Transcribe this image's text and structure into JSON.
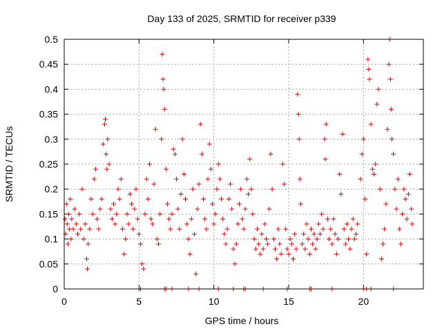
{
  "chart_data": {
    "type": "scatter",
    "title": "Day 133 of 2025, SRMTID for receiver p339",
    "xlabel": "GPS time / hours",
    "ylabel": "SRMTID / TECUs",
    "xlim": [
      0,
      24
    ],
    "ylim": [
      0,
      0.5
    ],
    "x_ticks": [
      0,
      5,
      10,
      15,
      20
    ],
    "y_ticks": [
      0,
      0.05,
      0.1,
      0.15,
      0.2,
      0.25,
      0.3,
      0.35,
      0.4,
      0.45,
      0.5
    ],
    "x_tick_labels": [
      "0",
      "5",
      "10",
      "15",
      "20"
    ],
    "y_tick_labels": [
      "0",
      "0.05",
      "0.1",
      "0.15",
      "0.2",
      "0.25",
      "0.3",
      "0.35",
      "0.4",
      "0.45",
      "0.5"
    ],
    "grid": true,
    "marker": "+",
    "color": "#e00000",
    "series": [
      {
        "name": "SRMTID",
        "points": [
          [
            0.05,
            0.14
          ],
          [
            0.1,
            0.11
          ],
          [
            0.15,
            0.17
          ],
          [
            0.2,
            0.13
          ],
          [
            0.25,
            0.09
          ],
          [
            0.3,
            0.15
          ],
          [
            0.35,
            0.12
          ],
          [
            0.4,
            0.18
          ],
          [
            0.45,
            0.1
          ],
          [
            0.5,
            0.14
          ],
          [
            0.6,
            0.12
          ],
          [
            0.7,
            0.16
          ],
          [
            0.8,
            0.13
          ],
          [
            0.9,
            0.11
          ],
          [
            1.0,
            0.15
          ],
          [
            1.1,
            0.12
          ],
          [
            1.2,
            0.2
          ],
          [
            1.3,
            0.1
          ],
          [
            1.4,
            0.13
          ],
          [
            1.5,
            0.06
          ],
          [
            1.55,
            0.04
          ],
          [
            1.6,
            0.09
          ],
          [
            1.7,
            0.12
          ],
          [
            1.8,
            0.18
          ],
          [
            1.9,
            0.15
          ],
          [
            2.0,
            0.22
          ],
          [
            2.1,
            0.24
          ],
          [
            2.2,
            0.14
          ],
          [
            2.3,
            0.12
          ],
          [
            2.4,
            0.16
          ],
          [
            2.5,
            0.18
          ],
          [
            2.6,
            0.29
          ],
          [
            2.7,
            0.33
          ],
          [
            2.75,
            0.34
          ],
          [
            2.8,
            0.27
          ],
          [
            2.85,
            0.24
          ],
          [
            2.9,
            0.3
          ],
          [
            3.0,
            0.25
          ],
          [
            3.1,
            0.16
          ],
          [
            3.2,
            0.14
          ],
          [
            3.3,
            0.17
          ],
          [
            3.4,
            0.13
          ],
          [
            3.5,
            0.15
          ],
          [
            3.6,
            0.2
          ],
          [
            3.7,
            0.18
          ],
          [
            3.8,
            0.22
          ],
          [
            3.9,
            0.12
          ],
          [
            4.0,
            0.07
          ],
          [
            4.1,
            0.1
          ],
          [
            4.2,
            0.15
          ],
          [
            4.3,
            0.13
          ],
          [
            4.4,
            0.19
          ],
          [
            4.5,
            0.17
          ],
          [
            4.6,
            0.12
          ],
          [
            4.7,
            0.16
          ],
          [
            4.8,
            0.2
          ],
          [
            4.9,
            0.14
          ],
          [
            5.0,
            0.11
          ],
          [
            5.1,
            0.09
          ],
          [
            5.2,
            0.05
          ],
          [
            5.3,
            0.04
          ],
          [
            5.4,
            0.15
          ],
          [
            5.5,
            0.22
          ],
          [
            5.6,
            0.18
          ],
          [
            5.7,
            0.25
          ],
          [
            5.8,
            0.14
          ],
          [
            5.9,
            0.13
          ],
          [
            6.0,
            0.21
          ],
          [
            6.1,
            0.32
          ],
          [
            6.2,
            0.1
          ],
          [
            6.3,
            0.09
          ],
          [
            6.4,
            0.15
          ],
          [
            6.5,
            0.3
          ],
          [
            6.55,
            0.47
          ],
          [
            6.6,
            0.42
          ],
          [
            6.65,
            0.4
          ],
          [
            6.7,
            0.36
          ],
          [
            6.8,
            0.24
          ],
          [
            6.9,
            0.17
          ],
          [
            7.0,
            0.14
          ],
          [
            7.1,
            0.12
          ],
          [
            7.2,
            0.15
          ],
          [
            7.3,
            0.28
          ],
          [
            7.4,
            0.27
          ],
          [
            7.5,
            0.22
          ],
          [
            7.6,
            0.16
          ],
          [
            7.7,
            0.12
          ],
          [
            7.8,
            0.19
          ],
          [
            7.9,
            0.3
          ],
          [
            8.0,
            0.23
          ],
          [
            8.1,
            0.18
          ],
          [
            8.2,
            0.13
          ],
          [
            8.3,
            0.1
          ],
          [
            8.4,
            0.07
          ],
          [
            8.5,
            0.14
          ],
          [
            8.6,
            0.2
          ],
          [
            8.7,
            0.11
          ],
          [
            8.8,
            0.03
          ],
          [
            8.9,
            0.16
          ],
          [
            9.0,
            0.21
          ],
          [
            9.1,
            0.33
          ],
          [
            9.2,
            0.27
          ],
          [
            9.3,
            0.18
          ],
          [
            9.4,
            0.14
          ],
          [
            9.5,
            0.12
          ],
          [
            9.6,
            0.22
          ],
          [
            9.7,
            0.29
          ],
          [
            9.8,
            0.24
          ],
          [
            9.9,
            0.17
          ],
          [
            10.0,
            0.13
          ],
          [
            10.1,
            0.15
          ],
          [
            10.2,
            0.2
          ],
          [
            10.3,
            0.25
          ],
          [
            10.4,
            0.22
          ],
          [
            10.5,
            0.18
          ],
          [
            10.6,
            0.14
          ],
          [
            10.7,
            0.11
          ],
          [
            10.8,
            0.09
          ],
          [
            10.9,
            0.12
          ],
          [
            11.0,
            0.18
          ],
          [
            11.1,
            0.21
          ],
          [
            11.2,
            0.16
          ],
          [
            11.3,
            0.08
          ],
          [
            11.4,
            0.05
          ],
          [
            11.5,
            0.09
          ],
          [
            11.6,
            0.13
          ],
          [
            11.7,
            0.17
          ],
          [
            11.8,
            0.2
          ],
          [
            11.9,
            0.14
          ],
          [
            12.0,
            0.12
          ],
          [
            12.1,
            0.16
          ],
          [
            12.2,
            0.22
          ],
          [
            12.3,
            0.19
          ],
          [
            12.4,
            0.26
          ],
          [
            12.5,
            0.2
          ],
          [
            12.6,
            0.15
          ],
          [
            12.7,
            0.1
          ],
          [
            12.8,
            0.08
          ],
          [
            12.9,
            0.12
          ],
          [
            13.0,
            0.09
          ],
          [
            13.1,
            0.07
          ],
          [
            13.2,
            0.11
          ],
          [
            13.3,
            0.08
          ],
          [
            13.4,
            0.13
          ],
          [
            13.5,
            0.1
          ],
          [
            13.6,
            0.09
          ],
          [
            13.7,
            0.16
          ],
          [
            13.8,
            0.27
          ],
          [
            13.9,
            0.2
          ],
          [
            14.0,
            0.1
          ],
          [
            14.1,
            0.08
          ],
          [
            14.2,
            0.06
          ],
          [
            14.3,
            0.12
          ],
          [
            14.4,
            0.09
          ],
          [
            14.5,
            0.07
          ],
          [
            14.6,
            0.25
          ],
          [
            14.7,
            0.21
          ],
          [
            14.8,
            0.12
          ],
          [
            14.9,
            0.08
          ],
          [
            15.0,
            0.07
          ],
          [
            15.1,
            0.1
          ],
          [
            15.2,
            0.09
          ],
          [
            15.3,
            0.06
          ],
          [
            15.4,
            0.11
          ],
          [
            15.5,
            0.08
          ],
          [
            15.6,
            0.39
          ],
          [
            15.65,
            0.35
          ],
          [
            15.7,
            0.3
          ],
          [
            15.75,
            0.22
          ],
          [
            15.8,
            0.17
          ],
          [
            15.9,
            0.09
          ],
          [
            16.0,
            0.11
          ],
          [
            16.1,
            0.08
          ],
          [
            16.2,
            0.13
          ],
          [
            16.3,
            0.1
          ],
          [
            16.4,
            0.07
          ],
          [
            16.5,
            0.12
          ],
          [
            16.6,
            0.09
          ],
          [
            16.7,
            0.11
          ],
          [
            16.8,
            0.08
          ],
          [
            16.9,
            0.1
          ],
          [
            17.0,
            0.13
          ],
          [
            17.1,
            0.11
          ],
          [
            17.2,
            0.15
          ],
          [
            17.3,
            0.12
          ],
          [
            17.4,
            0.3
          ],
          [
            17.45,
            0.26
          ],
          [
            17.5,
            0.33
          ],
          [
            17.6,
            0.14
          ],
          [
            17.7,
            0.1
          ],
          [
            17.8,
            0.12
          ],
          [
            17.9,
            0.09
          ],
          [
            18.0,
            0.14
          ],
          [
            18.1,
            0.11
          ],
          [
            18.2,
            0.07
          ],
          [
            18.3,
            0.1
          ],
          [
            18.4,
            0.23
          ],
          [
            18.5,
            0.19
          ],
          [
            18.6,
            0.31
          ],
          [
            18.7,
            0.12
          ],
          [
            18.8,
            0.09
          ],
          [
            18.9,
            0.13
          ],
          [
            19.0,
            0.1
          ],
          [
            19.1,
            0.08
          ],
          [
            19.2,
            0.12
          ],
          [
            19.3,
            0.14
          ],
          [
            19.4,
            0.1
          ],
          [
            19.5,
            0.11
          ],
          [
            19.6,
            0.13
          ],
          [
            19.8,
            0.22
          ],
          [
            19.9,
            0.27
          ],
          [
            20.0,
            0.3
          ],
          [
            20.1,
            0.18
          ],
          [
            20.2,
            0.07
          ],
          [
            20.3,
            0.46
          ],
          [
            20.35,
            0.44
          ],
          [
            20.4,
            0.42
          ],
          [
            20.5,
            0.33
          ],
          [
            20.6,
            0.24
          ],
          [
            20.7,
            0.23
          ],
          [
            20.8,
            0.25
          ],
          [
            20.9,
            0.37
          ],
          [
            21.0,
            0.4
          ],
          [
            21.1,
            0.2
          ],
          [
            21.2,
            0.06
          ],
          [
            21.3,
            0.09
          ],
          [
            21.4,
            0.12
          ],
          [
            21.5,
            0.17
          ],
          [
            21.6,
            0.32
          ],
          [
            21.7,
            0.45
          ],
          [
            21.75,
            0.5
          ],
          [
            21.8,
            0.42
          ],
          [
            21.85,
            0.36
          ],
          [
            21.9,
            0.3
          ],
          [
            22.0,
            0.27
          ],
          [
            22.1,
            0.2
          ],
          [
            22.2,
            0.16
          ],
          [
            22.3,
            0.22
          ],
          [
            22.4,
            0.12
          ],
          [
            22.5,
            0.09
          ],
          [
            22.6,
            0.15
          ],
          [
            22.7,
            0.2
          ],
          [
            22.8,
            0.18
          ],
          [
            22.9,
            0.14
          ],
          [
            23.0,
            0.19
          ],
          [
            23.1,
            0.23
          ],
          [
            23.2,
            0.16
          ],
          [
            23.25,
            0.13
          ],
          [
            5.0,
            0.0
          ],
          [
            5.1,
            0.0
          ],
          [
            6.7,
            0.0
          ],
          [
            6.8,
            0.0
          ],
          [
            7.2,
            0.0
          ],
          [
            8.3,
            0.0
          ],
          [
            9.0,
            0.0
          ],
          [
            10.3,
            0.0
          ],
          [
            11.3,
            0.0
          ],
          [
            12.0,
            0.0
          ],
          [
            12.1,
            0.0
          ],
          [
            13.3,
            0.0
          ],
          [
            14.9,
            0.0
          ],
          [
            16.4,
            0.0
          ],
          [
            16.5,
            0.0
          ],
          [
            17.9,
            0.0
          ],
          [
            20.0,
            0.0
          ],
          [
            20.2,
            0.0
          ],
          [
            20.5,
            0.0
          ],
          [
            22.0,
            0.0
          ]
        ]
      }
    ]
  }
}
